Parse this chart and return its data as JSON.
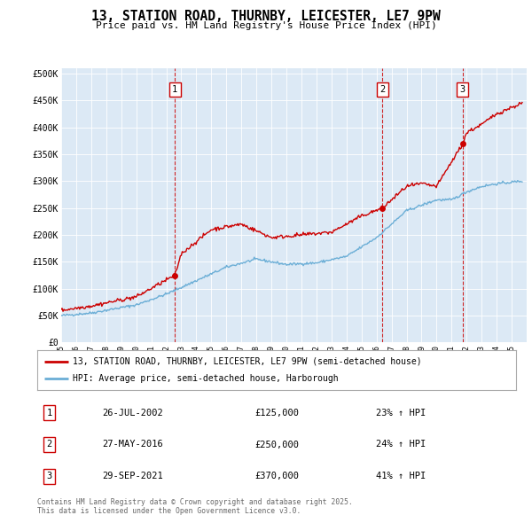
{
  "title_line1": "13, STATION ROAD, THURNBY, LEICESTER, LE7 9PW",
  "title_line2": "Price paid vs. HM Land Registry's House Price Index (HPI)",
  "background_color": "#dce9f5",
  "fig_bg_color": "#ffffff",
  "ylabel_ticks": [
    "£0",
    "£50K",
    "£100K",
    "£150K",
    "£200K",
    "£250K",
    "£300K",
    "£350K",
    "£400K",
    "£450K",
    "£500K"
  ],
  "ytick_values": [
    0,
    50000,
    100000,
    150000,
    200000,
    250000,
    300000,
    350000,
    400000,
    450000,
    500000
  ],
  "sale_prices": [
    125000,
    250000,
    370000
  ],
  "sale_labels": [
    "1",
    "2",
    "3"
  ],
  "sale_pct": [
    "23%",
    "24%",
    "41%"
  ],
  "sale_date_labels": [
    "26-JUL-2002",
    "27-MAY-2016",
    "29-SEP-2021"
  ],
  "sale_price_labels": [
    "£125,000",
    "£250,000",
    "£370,000"
  ],
  "legend_line1": "13, STATION ROAD, THURNBY, LEICESTER, LE7 9PW (semi-detached house)",
  "legend_line2": "HPI: Average price, semi-detached house, Harborough",
  "footnote": "Contains HM Land Registry data © Crown copyright and database right 2025.\nThis data is licensed under the Open Government Licence v3.0.",
  "red_color": "#cc0000",
  "blue_color": "#6baed6"
}
